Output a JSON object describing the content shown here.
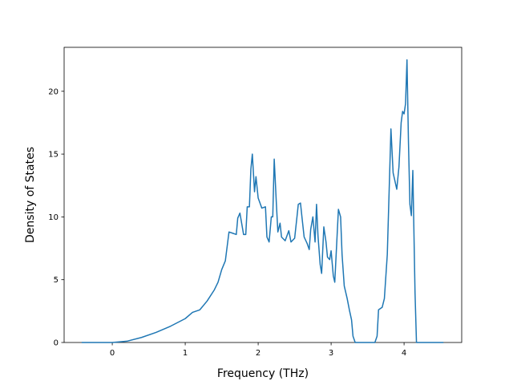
{
  "chart_data": {
    "type": "line",
    "x_label": "Frequency (THz)",
    "y_label": "Density of States",
    "x": [
      -0.42,
      0,
      0.2,
      0.4,
      0.6,
      0.8,
      1.0,
      1.1,
      1.2,
      1.3,
      1.4,
      1.45,
      1.5,
      1.55,
      1.6,
      1.65,
      1.7,
      1.72,
      1.75,
      1.8,
      1.83,
      1.85,
      1.88,
      1.9,
      1.92,
      1.95,
      1.97,
      2.0,
      2.05,
      2.1,
      2.12,
      2.15,
      2.18,
      2.2,
      2.22,
      2.25,
      2.27,
      2.3,
      2.32,
      2.37,
      2.42,
      2.45,
      2.5,
      2.53,
      2.55,
      2.58,
      2.6,
      2.63,
      2.67,
      2.7,
      2.72,
      2.75,
      2.78,
      2.8,
      2.82,
      2.85,
      2.87,
      2.9,
      2.93,
      2.95,
      2.98,
      3.0,
      3.03,
      3.05,
      3.1,
      3.13,
      3.15,
      3.18,
      3.22,
      3.25,
      3.28,
      3.3,
      3.33,
      3.6,
      3.63,
      3.65,
      3.7,
      3.73,
      3.77,
      3.8,
      3.82,
      3.85,
      3.9,
      3.93,
      3.96,
      3.98,
      4.0,
      4.02,
      4.04,
      4.06,
      4.08,
      4.1,
      4.12,
      4.15,
      4.17,
      4.54
    ],
    "series": [
      {
        "color": "#1f77b4",
        "values": [
          0,
          0,
          0.1,
          0.4,
          0.8,
          1.3,
          1.9,
          2.4,
          2.6,
          3.3,
          4.2,
          4.8,
          5.8,
          6.5,
          8.8,
          8.7,
          8.6,
          9.9,
          10.3,
          8.6,
          8.6,
          10.8,
          10.8,
          13.8,
          15.0,
          12.0,
          13.2,
          11.5,
          10.7,
          10.8,
          8.4,
          8.0,
          10.0,
          10.0,
          14.6,
          11.0,
          8.8,
          9.5,
          8.4,
          8.1,
          8.9,
          8.0,
          8.3,
          9.9,
          11.0,
          11.1,
          10.0,
          8.4,
          7.9,
          7.4,
          9.0,
          10.0,
          8.0,
          11.0,
          8.5,
          6.2,
          5.5,
          9.2,
          8.0,
          6.8,
          6.6,
          7.3,
          5.3,
          4.8,
          10.6,
          10.0,
          7.0,
          4.5,
          3.5,
          2.6,
          1.8,
          0.5,
          0,
          0,
          0.5,
          2.6,
          2.8,
          3.5,
          7.0,
          13.0,
          17.0,
          13.5,
          12.2,
          14.0,
          17.5,
          18.4,
          18.2,
          19.0,
          22.5,
          16.0,
          11.0,
          10.1,
          13.7,
          4.0,
          0,
          0
        ]
      }
    ],
    "xlim": [
      -0.66,
      4.79
    ],
    "ylim": [
      0,
      23.5
    ],
    "xticks": [
      0,
      1,
      2,
      3,
      4
    ],
    "yticks": [
      0,
      5,
      10,
      15,
      20
    ]
  }
}
